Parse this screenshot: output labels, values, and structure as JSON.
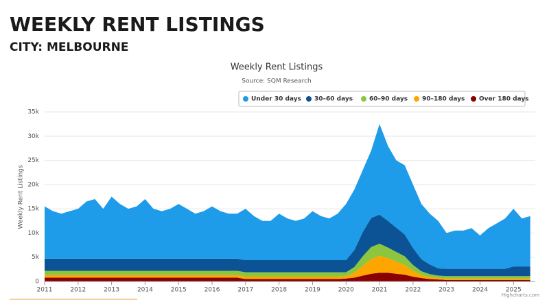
{
  "header": {
    "title": "WEEKLY RENT LISTINGS",
    "subtitle": "CITY: MELBOURNE"
  },
  "chart_data": {
    "type": "stacked-area",
    "title": "Weekly Rent Listings",
    "subtitle": "Source: SQM Research",
    "y_label": "Weekly Rent Listings",
    "credits": "Highcharts.com",
    "x": [
      2011,
      2011.25,
      2011.5,
      2011.75,
      2012,
      2012.25,
      2012.5,
      2012.75,
      2013,
      2013.25,
      2013.5,
      2013.75,
      2014,
      2014.25,
      2014.5,
      2014.75,
      2015,
      2015.25,
      2015.5,
      2015.75,
      2016,
      2016.25,
      2016.5,
      2016.75,
      2017,
      2017.25,
      2017.5,
      2017.75,
      2018,
      2018.25,
      2018.5,
      2018.75,
      2019,
      2019.25,
      2019.5,
      2019.75,
      2020,
      2020.25,
      2020.5,
      2020.75,
      2021,
      2021.25,
      2021.5,
      2021.75,
      2022,
      2022.25,
      2022.5,
      2022.75,
      2023,
      2023.25,
      2023.5,
      2023.75,
      2024,
      2024.25,
      2024.5,
      2024.75,
      2025,
      2025.25,
      2025.5
    ],
    "xlim": [
      2011,
      2025.65
    ],
    "xticks": [
      2011,
      2012,
      2013,
      2014,
      2015,
      2016,
      2017,
      2018,
      2019,
      2020,
      2021,
      2022,
      2023,
      2024,
      2025
    ],
    "ylim": [
      0,
      35000
    ],
    "yticks": [
      0,
      {
        "value": 5000,
        "label": "5k"
      },
      {
        "value": 10000,
        "label": "10k"
      },
      {
        "value": 15000,
        "label": "15k"
      },
      {
        "value": 20000,
        "label": "20k"
      },
      {
        "value": 25000,
        "label": "25k"
      },
      {
        "value": 30000,
        "label": "30k"
      },
      {
        "value": 35000,
        "label": "35k"
      }
    ],
    "grid": true,
    "legend": "top-right",
    "series": [
      {
        "name": "Under 30 days",
        "color": "#1e9be9",
        "values": [
          10800,
          9800,
          9300,
          9800,
          10300,
          11800,
          12300,
          10300,
          12800,
          11300,
          10300,
          10800,
          12300,
          10300,
          9800,
          10300,
          11300,
          10300,
          9300,
          9800,
          10800,
          9800,
          9300,
          9300,
          10600,
          9100,
          8100,
          8100,
          9600,
          8600,
          8100,
          8600,
          10100,
          9100,
          8600,
          9600,
          11600,
          12500,
          12800,
          13900,
          18700,
          15500,
          13900,
          14300,
          13100,
          11400,
          10500,
          9800,
          7400,
          7900,
          7900,
          8400,
          6900,
          8400,
          9400,
          10400,
          11900,
          9900,
          10400
        ]
      },
      {
        "name": "30–60 days",
        "color": "#0b5394",
        "values": [
          2500,
          2500,
          2500,
          2500,
          2500,
          2500,
          2500,
          2500,
          2500,
          2500,
          2500,
          2500,
          2500,
          2500,
          2500,
          2500,
          2500,
          2500,
          2500,
          2500,
          2500,
          2500,
          2500,
          2500,
          2500,
          2500,
          2500,
          2500,
          2500,
          2500,
          2500,
          2500,
          2500,
          2500,
          2500,
          2500,
          2500,
          3500,
          5000,
          6000,
          6000,
          5500,
          5000,
          4500,
          3500,
          2500,
          2000,
          1500,
          1500,
          1500,
          1500,
          1500,
          1500,
          1500,
          1500,
          1500,
          2000,
          2000,
          2000
        ]
      },
      {
        "name": "60–90 days",
        "color": "#8cc63f",
        "values": [
          900,
          900,
          900,
          900,
          900,
          900,
          900,
          900,
          900,
          900,
          900,
          900,
          900,
          900,
          900,
          900,
          900,
          900,
          900,
          900,
          900,
          900,
          900,
          900,
          900,
          900,
          900,
          900,
          900,
          900,
          900,
          900,
          900,
          900,
          900,
          900,
          800,
          1200,
          2000,
          2500,
          2500,
          2200,
          2000,
          1800,
          1200,
          800,
          600,
          500,
          500,
          500,
          500,
          500,
          500,
          500,
          500,
          500,
          500,
          500,
          500
        ]
      },
      {
        "name": "90–180 days",
        "color": "#ffa500",
        "values": [
          500,
          500,
          500,
          500,
          500,
          500,
          500,
          500,
          500,
          500,
          500,
          500,
          500,
          500,
          500,
          500,
          500,
          500,
          500,
          500,
          500,
          500,
          500,
          500,
          500,
          500,
          500,
          500,
          500,
          500,
          500,
          500,
          500,
          500,
          500,
          500,
          500,
          1000,
          2000,
          3000,
          3500,
          3000,
          2500,
          2000,
          1200,
          600,
          400,
          300,
          300,
          300,
          300,
          300,
          300,
          300,
          300,
          300,
          300,
          300,
          300
        ]
      },
      {
        "name": "Over 180 days",
        "color": "#8b0000",
        "values": [
          800,
          800,
          800,
          800,
          800,
          800,
          800,
          800,
          800,
          800,
          800,
          800,
          800,
          800,
          800,
          800,
          800,
          800,
          800,
          800,
          800,
          800,
          800,
          800,
          500,
          500,
          500,
          500,
          500,
          500,
          500,
          500,
          500,
          500,
          500,
          500,
          600,
          800,
          1200,
          1600,
          1800,
          1800,
          1600,
          1400,
          1000,
          700,
          500,
          400,
          300,
          300,
          300,
          300,
          300,
          300,
          300,
          300,
          300,
          300,
          300
        ]
      }
    ]
  }
}
